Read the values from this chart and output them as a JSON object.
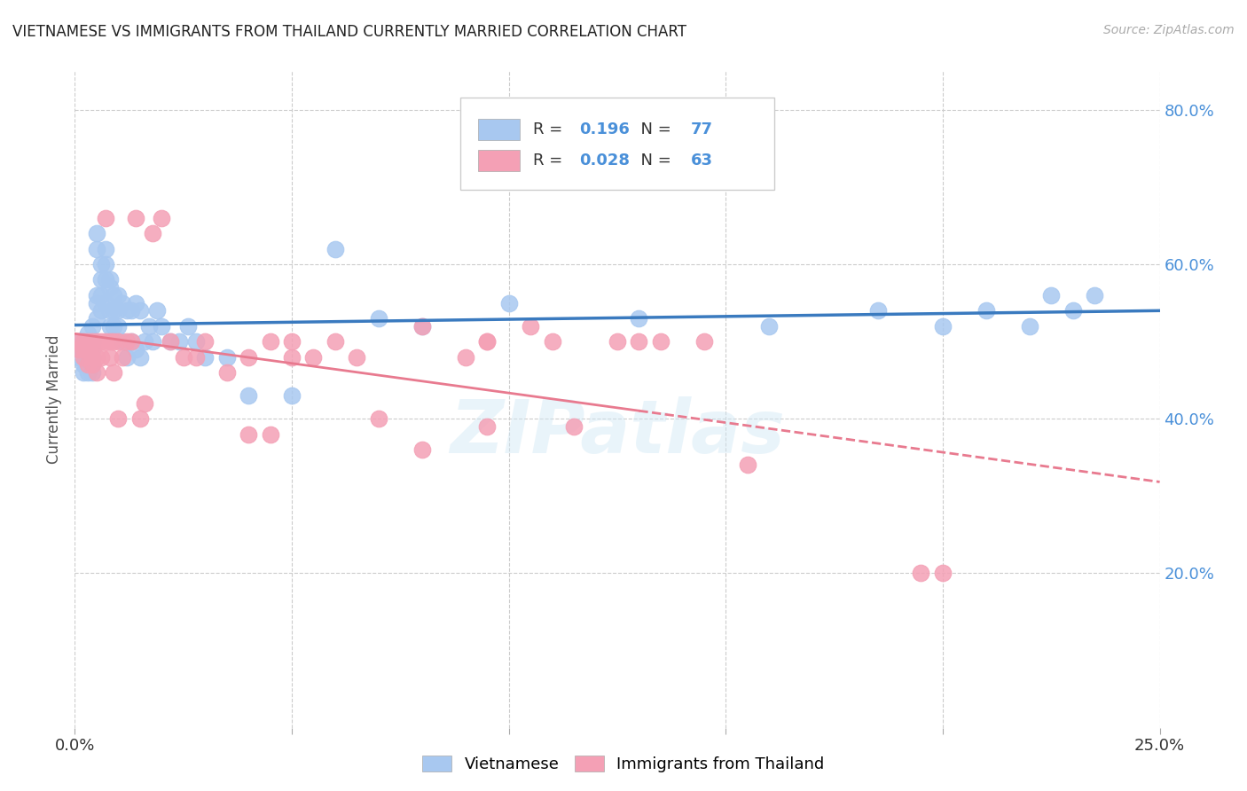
{
  "title": "VIETNAMESE VS IMMIGRANTS FROM THAILAND CURRENTLY MARRIED CORRELATION CHART",
  "source": "Source: ZipAtlas.com",
  "ylabel": "Currently Married",
  "x_min": 0.0,
  "x_max": 0.25,
  "y_min": 0.0,
  "y_max": 0.85,
  "x_ticks": [
    0.0,
    0.05,
    0.1,
    0.15,
    0.2,
    0.25
  ],
  "y_tick_labels_right": [
    "20.0%",
    "40.0%",
    "60.0%",
    "80.0%"
  ],
  "y_tick_positions_right": [
    0.2,
    0.4,
    0.6,
    0.8
  ],
  "color_vietnamese": "#a8c8f0",
  "color_thai": "#f4a0b5",
  "color_line_vietnamese": "#3a7abf",
  "color_line_thai": "#e87a8f",
  "R_vietnamese": 0.196,
  "N_vietnamese": 77,
  "R_thai": 0.028,
  "N_thai": 63,
  "legend_label_vietnamese": "Vietnamese",
  "legend_label_thai": "Immigrants from Thailand",
  "watermark": "ZIPatlas",
  "vietnamese_x": [
    0.001,
    0.001,
    0.001,
    0.002,
    0.002,
    0.002,
    0.002,
    0.003,
    0.003,
    0.003,
    0.003,
    0.003,
    0.004,
    0.004,
    0.004,
    0.004,
    0.004,
    0.004,
    0.005,
    0.005,
    0.005,
    0.005,
    0.005,
    0.006,
    0.006,
    0.006,
    0.006,
    0.007,
    0.007,
    0.007,
    0.007,
    0.008,
    0.008,
    0.008,
    0.008,
    0.009,
    0.009,
    0.009,
    0.01,
    0.01,
    0.01,
    0.011,
    0.011,
    0.012,
    0.012,
    0.013,
    0.013,
    0.014,
    0.014,
    0.015,
    0.015,
    0.016,
    0.017,
    0.018,
    0.019,
    0.02,
    0.022,
    0.024,
    0.026,
    0.028,
    0.03,
    0.035,
    0.04,
    0.05,
    0.06,
    0.07,
    0.08,
    0.1,
    0.13,
    0.16,
    0.185,
    0.2,
    0.21,
    0.22,
    0.225,
    0.23,
    0.235
  ],
  "vietnamese_y": [
    0.5,
    0.49,
    0.48,
    0.5,
    0.49,
    0.47,
    0.46,
    0.51,
    0.5,
    0.48,
    0.47,
    0.46,
    0.52,
    0.5,
    0.49,
    0.48,
    0.47,
    0.46,
    0.64,
    0.62,
    0.56,
    0.55,
    0.53,
    0.6,
    0.58,
    0.56,
    0.54,
    0.62,
    0.6,
    0.58,
    0.55,
    0.58,
    0.57,
    0.54,
    0.52,
    0.56,
    0.54,
    0.52,
    0.56,
    0.54,
    0.52,
    0.55,
    0.5,
    0.54,
    0.48,
    0.54,
    0.5,
    0.55,
    0.49,
    0.54,
    0.48,
    0.5,
    0.52,
    0.5,
    0.54,
    0.52,
    0.5,
    0.5,
    0.52,
    0.5,
    0.48,
    0.48,
    0.43,
    0.43,
    0.62,
    0.53,
    0.52,
    0.55,
    0.53,
    0.52,
    0.54,
    0.52,
    0.54,
    0.52,
    0.56,
    0.54,
    0.56
  ],
  "thai_x": [
    0.001,
    0.001,
    0.002,
    0.002,
    0.002,
    0.003,
    0.003,
    0.003,
    0.004,
    0.004,
    0.004,
    0.005,
    0.005,
    0.005,
    0.006,
    0.006,
    0.007,
    0.007,
    0.008,
    0.008,
    0.009,
    0.009,
    0.01,
    0.01,
    0.011,
    0.012,
    0.013,
    0.014,
    0.015,
    0.016,
    0.018,
    0.02,
    0.022,
    0.025,
    0.028,
    0.03,
    0.035,
    0.04,
    0.045,
    0.05,
    0.055,
    0.06,
    0.065,
    0.07,
    0.08,
    0.09,
    0.095,
    0.11,
    0.125,
    0.095,
    0.115,
    0.13,
    0.145,
    0.04,
    0.045,
    0.05,
    0.135,
    0.095,
    0.105,
    0.08,
    0.155,
    0.195,
    0.2
  ],
  "thai_y": [
    0.5,
    0.49,
    0.5,
    0.49,
    0.48,
    0.5,
    0.49,
    0.47,
    0.5,
    0.48,
    0.47,
    0.5,
    0.48,
    0.46,
    0.5,
    0.48,
    0.66,
    0.5,
    0.48,
    0.5,
    0.5,
    0.46,
    0.5,
    0.4,
    0.48,
    0.5,
    0.5,
    0.66,
    0.4,
    0.42,
    0.64,
    0.66,
    0.5,
    0.48,
    0.48,
    0.5,
    0.46,
    0.48,
    0.5,
    0.48,
    0.48,
    0.5,
    0.48,
    0.4,
    0.52,
    0.48,
    0.5,
    0.5,
    0.5,
    0.39,
    0.39,
    0.5,
    0.5,
    0.38,
    0.38,
    0.5,
    0.5,
    0.5,
    0.52,
    0.36,
    0.34,
    0.2,
    0.2
  ]
}
